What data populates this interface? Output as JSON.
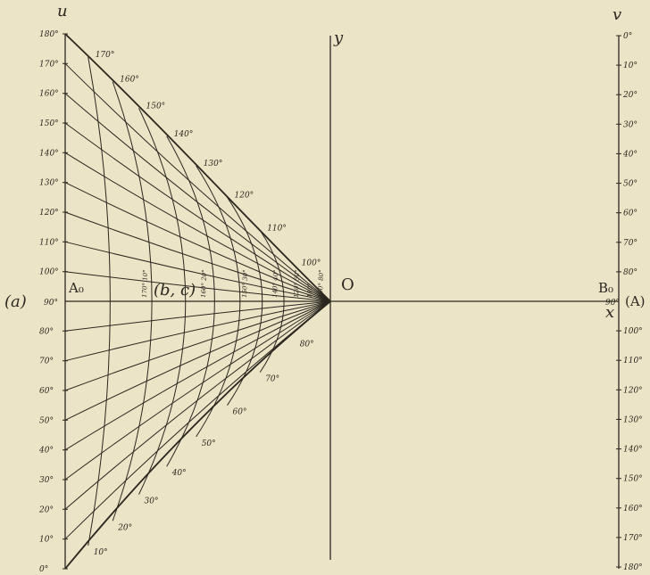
{
  "labels": {
    "u": "u",
    "v": "v",
    "y": "y",
    "x": "x",
    "O": "O",
    "A0": "A₀",
    "B0": "B₀",
    "a": "(a)",
    "bc": "(b, c)",
    "A_right": "(A)"
  },
  "u_axis_labels": [
    "0°",
    "10°",
    "20°",
    "30°",
    "40°",
    "50°",
    "60°",
    "70°",
    "80°",
    "90°",
    "100°",
    "110°",
    "120°",
    "130°",
    "140°",
    "150°",
    "160°",
    "170°",
    "180°"
  ],
  "v_axis_labels": [
    "0°",
    "10°",
    "20°",
    "30°",
    "40°",
    "50°",
    "60°",
    "70°",
    "80°",
    "90°",
    "100°",
    "110°",
    "120°",
    "130°",
    "140°",
    "150°",
    "160°",
    "170°",
    "180°"
  ],
  "boundary_labels": [
    "10°",
    "20°",
    "30°",
    "40°",
    "50°",
    "60°",
    "70°",
    "80°",
    "100°",
    "110°",
    "120°",
    "130°",
    "140°",
    "150°",
    "160°",
    "170°"
  ],
  "bc_curve_labels": [
    "170° 10°",
    "160° 20°",
    "150° 30°",
    "140° 40°",
    "120° 50°",
    "110°",
    "100° 80°"
  ],
  "axis_90_label": "90°",
  "colors": {
    "background": "#ece4c6",
    "ink": "#2b2720"
  }
}
